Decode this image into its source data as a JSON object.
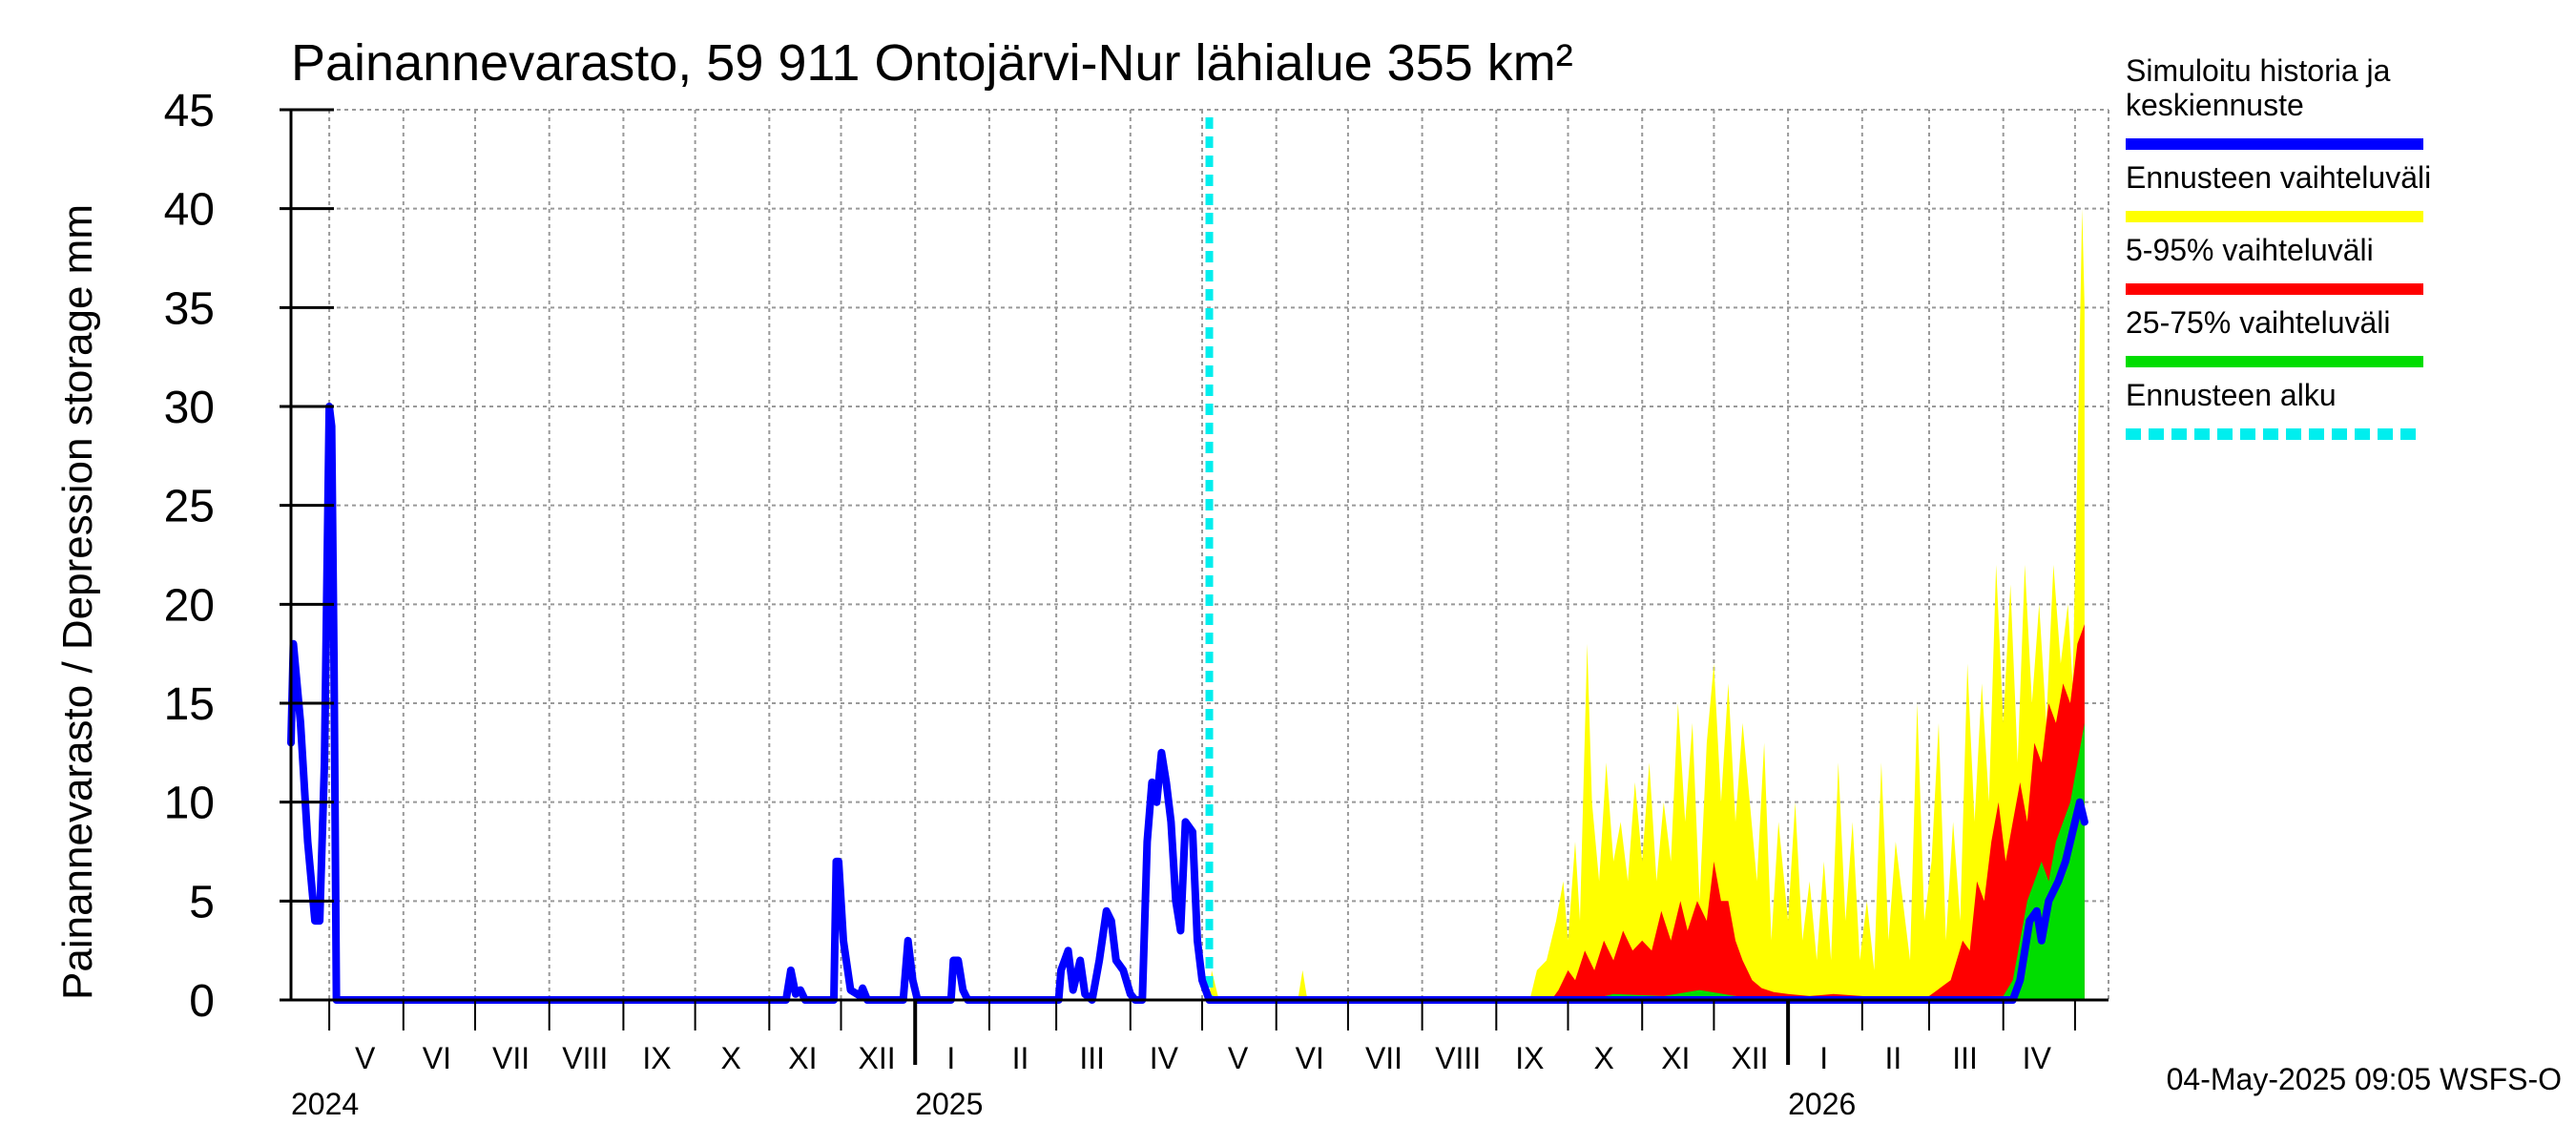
{
  "chart_data": {
    "type": "area",
    "title": "Painannevarasto, 59 911 Ontojärvi-Nur lähialue 355 km²",
    "ylabel": "Painannevarasto / Depression storage    mm",
    "ylim": [
      0,
      45
    ],
    "yticks": [
      "0",
      "5",
      "10",
      "15",
      "20",
      "25",
      "30",
      "35",
      "40",
      "45"
    ],
    "xlim": [
      "2024-04-15",
      "2026-05-15"
    ],
    "grid": true,
    "month_labels": [
      {
        "label": "V",
        "date": "2024-05-16"
      },
      {
        "label": "VI",
        "date": "2024-06-15"
      },
      {
        "label": "VII",
        "date": "2024-07-16"
      },
      {
        "label": "VIII",
        "date": "2024-08-16"
      },
      {
        "label": "IX",
        "date": "2024-09-15"
      },
      {
        "label": "X",
        "date": "2024-10-16"
      },
      {
        "label": "XI",
        "date": "2024-11-15"
      },
      {
        "label": "XII",
        "date": "2024-12-16"
      },
      {
        "label": "I",
        "date": "2025-01-16"
      },
      {
        "label": "II",
        "date": "2025-02-14"
      },
      {
        "label": "III",
        "date": "2025-03-16"
      },
      {
        "label": "IV",
        "date": "2025-04-15"
      },
      {
        "label": "V",
        "date": "2025-05-16"
      },
      {
        "label": "VI",
        "date": "2025-06-15"
      },
      {
        "label": "VII",
        "date": "2025-07-16"
      },
      {
        "label": "VIII",
        "date": "2025-08-16"
      },
      {
        "label": "IX",
        "date": "2025-09-15"
      },
      {
        "label": "X",
        "date": "2025-10-16"
      },
      {
        "label": "XI",
        "date": "2025-11-15"
      },
      {
        "label": "XII",
        "date": "2025-12-16"
      },
      {
        "label": "I",
        "date": "2026-01-16"
      },
      {
        "label": "II",
        "date": "2026-02-14"
      },
      {
        "label": "III",
        "date": "2026-03-16"
      },
      {
        "label": "IV",
        "date": "2026-04-15"
      }
    ],
    "year_labels": [
      {
        "label": "2024",
        "date": "2024-04-15"
      },
      {
        "label": "2025",
        "date": "2025-01-01"
      },
      {
        "label": "2026",
        "date": "2026-01-01"
      }
    ],
    "forecast_start": "2025-05-04",
    "legend": [
      {
        "label": "Simuloitu historia ja keskiennuste",
        "lines": [
          "Simuloitu historia ja",
          "keskiennuste"
        ],
        "color": "#0000ff",
        "style": "solid"
      },
      {
        "label": "Ennusteen vaihteluväli",
        "lines": [
          "Ennusteen vaihteluväli"
        ],
        "color": "#ffff00",
        "style": "solid"
      },
      {
        "label": "5-95% vaihteluväli",
        "lines": [
          "5-95% vaihteluväli"
        ],
        "color": "#ff0000",
        "style": "solid"
      },
      {
        "label": "25-75% vaihteluväli",
        "lines": [
          "25-75% vaihteluväli"
        ],
        "color": "#00dd00",
        "style": "solid"
      },
      {
        "label": "Ennusteen alku",
        "lines": [
          "Ennusteen alku"
        ],
        "color": "#00eeee",
        "style": "dashed"
      }
    ],
    "series": [
      {
        "name": "Simuloitu historia ja keskiennuste",
        "color": "#0000ff",
        "points": [
          [
            "2024-04-15",
            13
          ],
          [
            "2024-04-16",
            18
          ],
          [
            "2024-04-19",
            14
          ],
          [
            "2024-04-22",
            8
          ],
          [
            "2024-04-25",
            4
          ],
          [
            "2024-04-27",
            4
          ],
          [
            "2024-04-29",
            12
          ],
          [
            "2024-05-01",
            30
          ],
          [
            "2024-05-02",
            29
          ],
          [
            "2024-05-03",
            17
          ],
          [
            "2024-05-04",
            0
          ],
          [
            "2024-11-08",
            0
          ],
          [
            "2024-11-10",
            1.5
          ],
          [
            "2024-11-12",
            0.3
          ],
          [
            "2024-11-14",
            0.5
          ],
          [
            "2024-11-16",
            0
          ],
          [
            "2024-11-28",
            0
          ],
          [
            "2024-11-29",
            7
          ],
          [
            "2024-11-30",
            7
          ],
          [
            "2024-12-02",
            3
          ],
          [
            "2024-12-05",
            0.5
          ],
          [
            "2024-12-09",
            0.2
          ],
          [
            "2024-12-10",
            0.6
          ],
          [
            "2024-12-12",
            0
          ],
          [
            "2024-12-27",
            0
          ],
          [
            "2024-12-29",
            3
          ],
          [
            "2024-12-31",
            1
          ],
          [
            "2025-01-02",
            0
          ],
          [
            "2025-01-16",
            0
          ],
          [
            "2025-01-17",
            2
          ],
          [
            "2025-01-19",
            2
          ],
          [
            "2025-01-21",
            0.5
          ],
          [
            "2025-01-23",
            0
          ],
          [
            "2025-03-02",
            0
          ],
          [
            "2025-03-03",
            1.5
          ],
          [
            "2025-03-06",
            2.5
          ],
          [
            "2025-03-08",
            0.5
          ],
          [
            "2025-03-11",
            2
          ],
          [
            "2025-03-13",
            0.3
          ],
          [
            "2025-03-16",
            0
          ],
          [
            "2025-03-19",
            2
          ],
          [
            "2025-03-22",
            4.5
          ],
          [
            "2025-03-24",
            4
          ],
          [
            "2025-03-26",
            2
          ],
          [
            "2025-03-29",
            1.5
          ],
          [
            "2025-04-01",
            0.3
          ],
          [
            "2025-04-03",
            0
          ],
          [
            "2025-04-06",
            0
          ],
          [
            "2025-04-08",
            8
          ],
          [
            "2025-04-10",
            11
          ],
          [
            "2025-04-12",
            10
          ],
          [
            "2025-04-14",
            12.5
          ],
          [
            "2025-04-16",
            11
          ],
          [
            "2025-04-18",
            9
          ],
          [
            "2025-04-20",
            5
          ],
          [
            "2025-04-22",
            3.5
          ],
          [
            "2025-04-24",
            9
          ],
          [
            "2025-04-27",
            8.5
          ],
          [
            "2025-04-29",
            3
          ],
          [
            "2025-05-01",
            1
          ],
          [
            "2025-05-04",
            0
          ],
          [
            "2026-04-05",
            0
          ],
          [
            "2026-04-08",
            1
          ],
          [
            "2026-04-12",
            4
          ],
          [
            "2026-04-15",
            4.5
          ],
          [
            "2026-04-17",
            3
          ],
          [
            "2026-04-20",
            5
          ],
          [
            "2026-04-24",
            6
          ],
          [
            "2026-04-27",
            7
          ],
          [
            "2026-05-01",
            9
          ],
          [
            "2026-05-03",
            10
          ],
          [
            "2026-05-05",
            9
          ]
        ]
      }
    ],
    "bands": [
      {
        "name": "Ennusteen vaihteluväli",
        "color": "#ffff00",
        "points": [
          [
            "2025-05-04",
            0
          ],
          [
            "2025-05-05",
            1.5
          ],
          [
            "2025-05-08",
            0
          ],
          [
            "2025-06-10",
            0
          ],
          [
            "2025-06-12",
            1.5
          ],
          [
            "2025-06-14",
            0
          ],
          [
            "2025-09-15",
            0
          ],
          [
            "2025-09-18",
            1.5
          ],
          [
            "2025-09-22",
            2
          ],
          [
            "2025-09-26",
            4
          ],
          [
            "2025-09-29",
            6
          ],
          [
            "2025-10-01",
            3
          ],
          [
            "2025-10-04",
            8
          ],
          [
            "2025-10-06",
            4
          ],
          [
            "2025-10-09",
            18
          ],
          [
            "2025-10-11",
            10
          ],
          [
            "2025-10-14",
            6
          ],
          [
            "2025-10-17",
            12
          ],
          [
            "2025-10-20",
            7
          ],
          [
            "2025-10-23",
            9
          ],
          [
            "2025-10-26",
            6
          ],
          [
            "2025-10-29",
            11
          ],
          [
            "2025-11-01",
            7
          ],
          [
            "2025-11-04",
            12
          ],
          [
            "2025-11-07",
            6
          ],
          [
            "2025-11-10",
            10
          ],
          [
            "2025-11-13",
            7
          ],
          [
            "2025-11-16",
            15
          ],
          [
            "2025-11-19",
            9
          ],
          [
            "2025-11-22",
            14
          ],
          [
            "2025-11-25",
            5
          ],
          [
            "2025-11-28",
            13
          ],
          [
            "2025-12-01",
            17
          ],
          [
            "2025-12-04",
            10
          ],
          [
            "2025-12-07",
            16
          ],
          [
            "2025-12-10",
            9
          ],
          [
            "2025-12-13",
            14
          ],
          [
            "2025-12-16",
            10
          ],
          [
            "2025-12-19",
            6
          ],
          [
            "2025-12-22",
            13
          ],
          [
            "2025-12-25",
            3
          ],
          [
            "2025-12-28",
            9
          ],
          [
            "2026-01-01",
            4
          ],
          [
            "2026-01-04",
            10
          ],
          [
            "2026-01-07",
            3
          ],
          [
            "2026-01-10",
            6
          ],
          [
            "2026-01-13",
            2
          ],
          [
            "2026-01-16",
            7
          ],
          [
            "2026-01-19",
            2
          ],
          [
            "2026-01-22",
            12
          ],
          [
            "2026-01-25",
            4
          ],
          [
            "2026-01-28",
            9
          ],
          [
            "2026-01-31",
            2
          ],
          [
            "2026-02-03",
            5
          ],
          [
            "2026-02-06",
            1.5
          ],
          [
            "2026-02-09",
            12
          ],
          [
            "2026-02-12",
            3
          ],
          [
            "2026-02-15",
            8
          ],
          [
            "2026-02-18",
            5
          ],
          [
            "2026-02-21",
            2
          ],
          [
            "2026-02-24",
            15
          ],
          [
            "2026-02-27",
            4
          ],
          [
            "2026-03-02",
            7
          ],
          [
            "2026-03-05",
            14
          ],
          [
            "2026-03-08",
            3
          ],
          [
            "2026-03-11",
            9
          ],
          [
            "2026-03-14",
            4
          ],
          [
            "2026-03-17",
            17
          ],
          [
            "2026-03-20",
            9
          ],
          [
            "2026-03-23",
            16
          ],
          [
            "2026-03-26",
            10
          ],
          [
            "2026-03-29",
            22
          ],
          [
            "2026-04-01",
            14
          ],
          [
            "2026-04-04",
            21
          ],
          [
            "2026-04-07",
            12
          ],
          [
            "2026-04-10",
            22
          ],
          [
            "2026-04-13",
            15
          ],
          [
            "2026-04-16",
            20
          ],
          [
            "2026-04-19",
            14
          ],
          [
            "2026-04-22",
            22
          ],
          [
            "2026-04-25",
            17
          ],
          [
            "2026-04-28",
            20
          ],
          [
            "2026-04-30",
            16
          ],
          [
            "2026-05-02",
            27
          ],
          [
            "2026-05-04",
            40
          ],
          [
            "2026-05-05",
            35
          ]
        ]
      },
      {
        "name": "5-95% vaihteluväli",
        "color": "#ff0000",
        "points": [
          [
            "2025-09-24",
            0
          ],
          [
            "2025-09-27",
            0.5
          ],
          [
            "2025-10-01",
            1.5
          ],
          [
            "2025-10-04",
            1
          ],
          [
            "2025-10-08",
            2.5
          ],
          [
            "2025-10-12",
            1.5
          ],
          [
            "2025-10-16",
            3
          ],
          [
            "2025-10-20",
            2
          ],
          [
            "2025-10-24",
            3.5
          ],
          [
            "2025-10-28",
            2.5
          ],
          [
            "2025-11-01",
            3
          ],
          [
            "2025-11-05",
            2.5
          ],
          [
            "2025-11-09",
            4.5
          ],
          [
            "2025-11-13",
            3
          ],
          [
            "2025-11-17",
            5
          ],
          [
            "2025-11-20",
            3.5
          ],
          [
            "2025-11-24",
            5
          ],
          [
            "2025-11-28",
            4
          ],
          [
            "2025-12-01",
            7
          ],
          [
            "2025-12-04",
            5
          ],
          [
            "2025-12-07",
            5
          ],
          [
            "2025-12-10",
            3
          ],
          [
            "2025-12-13",
            2
          ],
          [
            "2025-12-17",
            1
          ],
          [
            "2025-12-21",
            0.6
          ],
          [
            "2025-12-26",
            0.4
          ],
          [
            "2026-01-01",
            0.3
          ],
          [
            "2026-01-10",
            0.2
          ],
          [
            "2026-01-20",
            0.3
          ],
          [
            "2026-02-01",
            0.2
          ],
          [
            "2026-02-15",
            0.1
          ],
          [
            "2026-03-01",
            0.2
          ],
          [
            "2026-03-10",
            1
          ],
          [
            "2026-03-15",
            3
          ],
          [
            "2026-03-18",
            2.5
          ],
          [
            "2026-03-21",
            6
          ],
          [
            "2026-03-24",
            5
          ],
          [
            "2026-03-27",
            8
          ],
          [
            "2026-03-30",
            10
          ],
          [
            "2026-04-02",
            7
          ],
          [
            "2026-04-05",
            9
          ],
          [
            "2026-04-08",
            11
          ],
          [
            "2026-04-11",
            9
          ],
          [
            "2026-04-14",
            13
          ],
          [
            "2026-04-17",
            12
          ],
          [
            "2026-04-20",
            15
          ],
          [
            "2026-04-23",
            14
          ],
          [
            "2026-04-26",
            16
          ],
          [
            "2026-04-29",
            15
          ],
          [
            "2026-05-02",
            18
          ],
          [
            "2026-05-05",
            19
          ]
        ]
      },
      {
        "name": "25-75% vaihteluväli",
        "color": "#00dd00",
        "points": [
          [
            "2025-10-10",
            0
          ],
          [
            "2025-10-20",
            0.3
          ],
          [
            "2025-11-10",
            0.2
          ],
          [
            "2025-11-25",
            0.5
          ],
          [
            "2025-12-05",
            0.3
          ],
          [
            "2025-12-15",
            0.1
          ],
          [
            "2026-04-01",
            0.2
          ],
          [
            "2026-04-05",
            1
          ],
          [
            "2026-04-08",
            3
          ],
          [
            "2026-04-11",
            5
          ],
          [
            "2026-04-14",
            6
          ],
          [
            "2026-04-17",
            7
          ],
          [
            "2026-04-20",
            6
          ],
          [
            "2026-04-23",
            8
          ],
          [
            "2026-04-26",
            9
          ],
          [
            "2026-04-29",
            10
          ],
          [
            "2026-05-02",
            12
          ],
          [
            "2026-05-05",
            14
          ]
        ]
      }
    ]
  },
  "footer": {
    "timestamp": "04-May-2025 09:05 WSFS-O"
  }
}
